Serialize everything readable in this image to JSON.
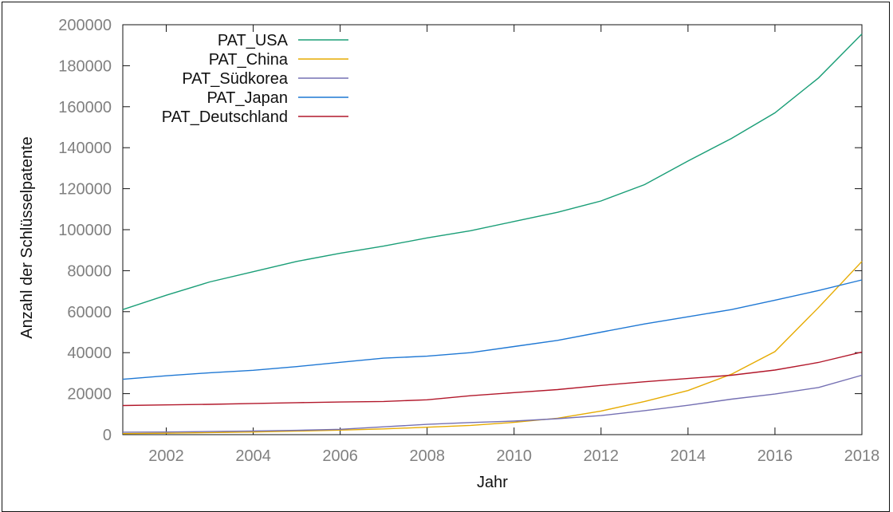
{
  "chart_data": {
    "type": "line",
    "title": "",
    "xlabel": "Jahr",
    "ylabel": "Anzahl der Schlüsselpatente",
    "xlim": [
      2001,
      2018
    ],
    "ylim": [
      0,
      200000
    ],
    "xticks": [
      2002,
      2004,
      2006,
      2008,
      2010,
      2012,
      2014,
      2016,
      2018
    ],
    "yticks": [
      0,
      20000,
      40000,
      60000,
      80000,
      100000,
      120000,
      140000,
      160000,
      180000,
      200000
    ],
    "grid": false,
    "legend_position": "top-left",
    "x": [
      2001,
      2002,
      2003,
      2004,
      2005,
      2006,
      2007,
      2008,
      2009,
      2010,
      2011,
      2012,
      2013,
      2014,
      2015,
      2016,
      2017,
      2018
    ],
    "series": [
      {
        "name": "PAT_USA",
        "color": "#1a9e77",
        "values": [
          61000,
          68000,
          74500,
          79500,
          84500,
          88500,
          92000,
          96000,
          99500,
          104000,
          108500,
          114000,
          122000,
          133500,
          144500,
          157000,
          174000,
          195500
        ]
      },
      {
        "name": "PAT_China",
        "color": "#e6ab02",
        "values": [
          500,
          700,
          1000,
          1300,
          1700,
          2200,
          2800,
          3600,
          4500,
          6000,
          8000,
          11500,
          16200,
          21500,
          29500,
          40500,
          62000,
          84500
        ]
      },
      {
        "name": "PAT_Südkorea",
        "color": "#7570b3",
        "values": [
          1200,
          1300,
          1500,
          1800,
          2100,
          2600,
          3800,
          5000,
          5900,
          6600,
          7800,
          9300,
          11700,
          14300,
          17300,
          19800,
          23000,
          29000
        ]
      },
      {
        "name": "PAT_Japan",
        "color": "#1f78d4",
        "values": [
          27000,
          28700,
          30200,
          31400,
          33200,
          35300,
          37300,
          38300,
          40000,
          43000,
          46000,
          50000,
          54000,
          57500,
          61000,
          65600,
          70300,
          75500
        ]
      },
      {
        "name": "PAT_Deutschland",
        "color": "#b2182b",
        "values": [
          14200,
          14500,
          14800,
          15200,
          15600,
          15900,
          16200,
          17000,
          19000,
          20500,
          22000,
          24000,
          25800,
          27400,
          29000,
          31500,
          35200,
          40300
        ]
      }
    ]
  }
}
